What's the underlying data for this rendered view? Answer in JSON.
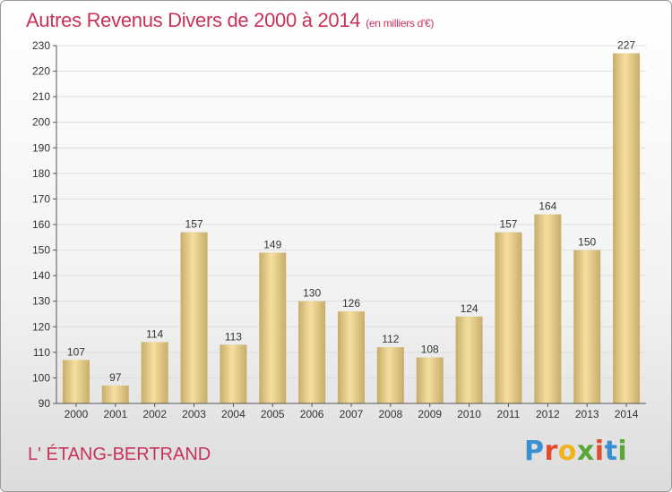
{
  "header": {
    "title": "Autres Revenus Divers de 2000 à 2014",
    "unit": "(en milliers d'€)"
  },
  "footer": {
    "place": "L' ÉTANG-BERTRAND",
    "brand": "Proxiti",
    "brand_colors": [
      "#3a8fd0",
      "#e24b2b",
      "#f2b21c",
      "#5aa63a",
      "#e24b2b",
      "#3a8fd0",
      "#5aa63a"
    ]
  },
  "chart_data": {
    "type": "bar",
    "title": "Autres Revenus Divers de 2000 à 2014",
    "xlabel": "",
    "ylabel": "",
    "categories": [
      "2000",
      "2001",
      "2002",
      "2003",
      "2004",
      "2005",
      "2006",
      "2007",
      "2008",
      "2009",
      "2010",
      "2011",
      "2012",
      "2013",
      "2014"
    ],
    "values": [
      107,
      97,
      114,
      157,
      113,
      149,
      130,
      126,
      112,
      108,
      124,
      157,
      164,
      150,
      227
    ],
    "ylim": [
      90,
      230
    ],
    "yticks": [
      90,
      100,
      110,
      120,
      130,
      140,
      150,
      160,
      170,
      180,
      190,
      200,
      210,
      220,
      230
    ],
    "grid": true,
    "legend": "none",
    "colors": {
      "bar_light": "#f5dfa0",
      "bar_dark": "#c8ad6a",
      "grid": "#dddddd",
      "axis": "#555555",
      "text": "#333333"
    }
  }
}
